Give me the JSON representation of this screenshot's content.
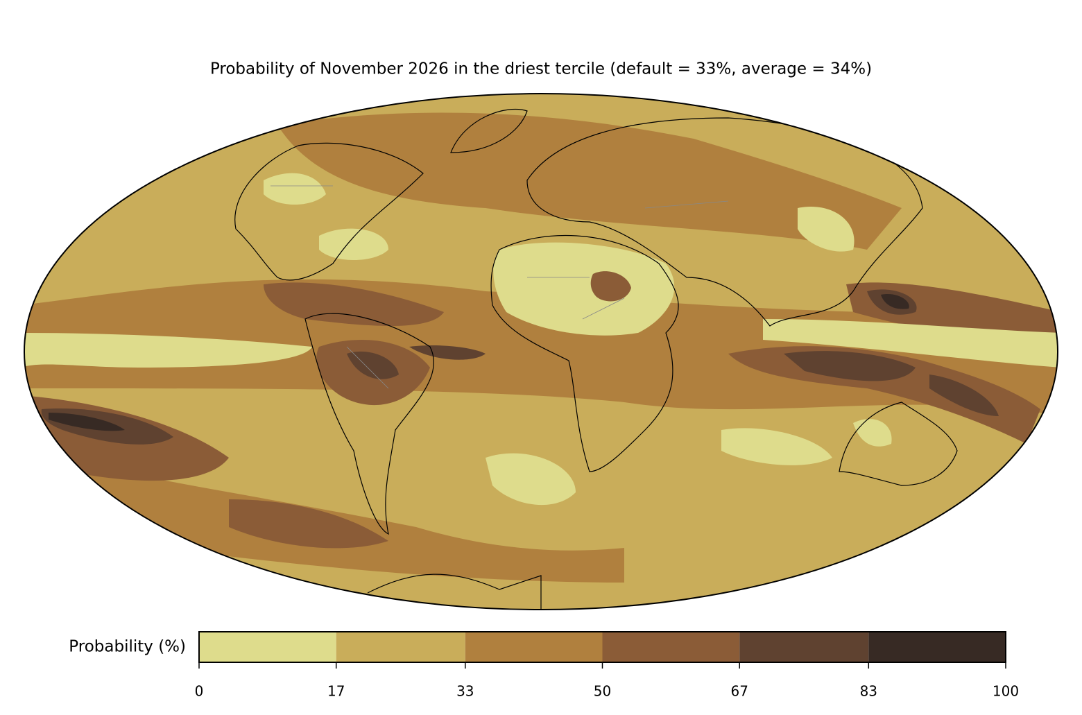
{
  "title": "Probability of November 2026 in the driest tercile (default = 33%, average = 34%)",
  "colorbar": {
    "label": "Probability (%)",
    "lim": [
      0,
      100
    ],
    "ticks": [
      0,
      17,
      33,
      50,
      67,
      83,
      100
    ],
    "colors": [
      "#dedc8c",
      "#c9ad5a",
      "#b0803e",
      "#8b5c37",
      "#5f4230",
      "#372a24"
    ]
  }
}
